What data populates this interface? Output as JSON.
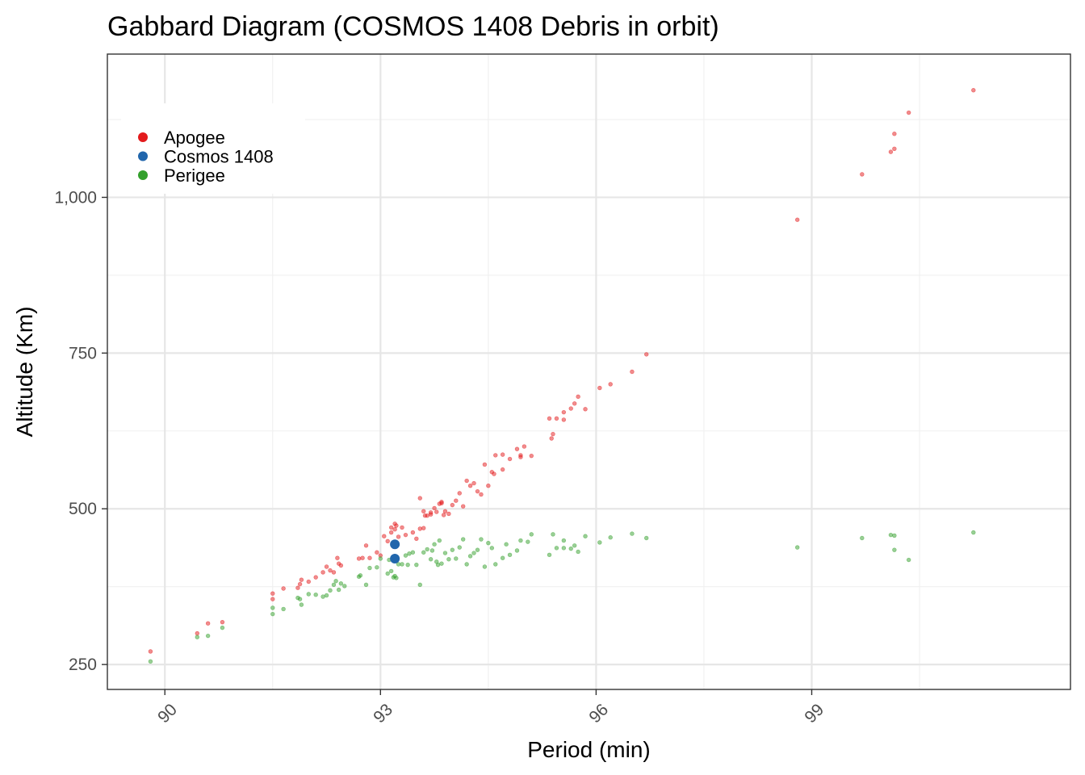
{
  "chart_data": {
    "type": "scatter",
    "title": "Gabbard Diagram (COSMOS 1408 Debris in orbit)",
    "xlabel": "Period (min)",
    "ylabel": "Altitude (Km)",
    "xlim": [
      89.2,
      102.6
    ],
    "ylim": [
      210,
      1230
    ],
    "x_ticks": [
      90,
      93,
      96,
      99
    ],
    "x_tick_labels": [
      "90",
      "93",
      "96",
      "99"
    ],
    "x_minor": [
      91.5,
      94.5,
      97.5,
      100.5
    ],
    "y_ticks": [
      250,
      500,
      750,
      1000
    ],
    "y_tick_labels": [
      "250",
      "500",
      "750",
      "1,000"
    ],
    "y_minor": [
      375,
      625,
      875,
      1125
    ],
    "grid": true,
    "legend_position": "top-left (inside)",
    "series": [
      {
        "name": "Apogee",
        "color": "#e31a1c",
        "point_style": "small translucent",
        "points": [
          [
            89.8,
            271
          ],
          [
            90.45,
            300
          ],
          [
            90.6,
            316
          ],
          [
            90.8,
            318
          ],
          [
            91.5,
            364
          ],
          [
            91.5,
            355
          ],
          [
            91.65,
            372
          ],
          [
            91.85,
            373
          ],
          [
            91.88,
            379
          ],
          [
            91.9,
            386
          ],
          [
            92.0,
            383
          ],
          [
            92.1,
            390
          ],
          [
            92.2,
            398
          ],
          [
            92.25,
            407
          ],
          [
            92.3,
            401
          ],
          [
            92.35,
            398
          ],
          [
            92.4,
            421
          ],
          [
            92.42,
            412
          ],
          [
            92.45,
            409
          ],
          [
            92.7,
            420
          ],
          [
            92.75,
            421
          ],
          [
            92.8,
            441
          ],
          [
            92.85,
            421
          ],
          [
            92.95,
            430
          ],
          [
            93.0,
            425
          ],
          [
            93.05,
            456
          ],
          [
            93.1,
            448
          ],
          [
            93.15,
            462
          ],
          [
            93.15,
            470
          ],
          [
            93.2,
            467
          ],
          [
            93.2,
            476
          ],
          [
            93.22,
            473
          ],
          [
            93.25,
            455
          ],
          [
            93.3,
            470
          ],
          [
            93.35,
            458
          ],
          [
            93.45,
            462
          ],
          [
            93.5,
            452
          ],
          [
            93.55,
            517
          ],
          [
            93.55,
            468
          ],
          [
            93.6,
            469
          ],
          [
            93.6,
            496
          ],
          [
            93.62,
            489
          ],
          [
            93.65,
            489
          ],
          [
            93.7,
            494
          ],
          [
            93.7,
            491
          ],
          [
            93.75,
            501
          ],
          [
            93.78,
            495
          ],
          [
            93.82,
            508
          ],
          [
            93.85,
            511
          ],
          [
            93.85,
            509
          ],
          [
            93.88,
            490
          ],
          [
            93.9,
            496
          ],
          [
            93.95,
            492
          ],
          [
            94.0,
            506
          ],
          [
            94.05,
            513
          ],
          [
            94.1,
            525
          ],
          [
            94.15,
            504
          ],
          [
            94.2,
            545
          ],
          [
            94.25,
            537
          ],
          [
            94.3,
            541
          ],
          [
            94.35,
            528
          ],
          [
            94.4,
            523
          ],
          [
            94.45,
            571
          ],
          [
            94.5,
            537
          ],
          [
            94.55,
            559
          ],
          [
            94.58,
            556
          ],
          [
            94.6,
            586
          ],
          [
            94.7,
            563
          ],
          [
            94.7,
            587
          ],
          [
            94.8,
            580
          ],
          [
            94.9,
            596
          ],
          [
            94.95,
            586
          ],
          [
            94.95,
            583
          ],
          [
            95.0,
            600
          ],
          [
            95.1,
            585
          ],
          [
            95.35,
            645
          ],
          [
            95.38,
            613
          ],
          [
            95.4,
            620
          ],
          [
            95.45,
            645
          ],
          [
            95.55,
            643
          ],
          [
            95.55,
            655
          ],
          [
            95.65,
            661
          ],
          [
            95.7,
            669
          ],
          [
            95.75,
            680
          ],
          [
            95.85,
            660
          ],
          [
            96.05,
            694
          ],
          [
            96.2,
            700
          ],
          [
            96.5,
            720
          ],
          [
            96.7,
            748
          ],
          [
            98.8,
            964
          ],
          [
            99.7,
            1037
          ],
          [
            100.1,
            1073
          ],
          [
            100.15,
            1078
          ],
          [
            100.15,
            1102
          ],
          [
            100.35,
            1136
          ],
          [
            101.25,
            1172
          ]
        ]
      },
      {
        "name": "Cosmos 1408",
        "color": "#2166ac",
        "point_style": "large solid",
        "points": [
          [
            93.2,
            443
          ],
          [
            93.2,
            420
          ]
        ]
      },
      {
        "name": "Perigee",
        "color": "#33a02c",
        "point_style": "small translucent",
        "points": [
          [
            89.8,
            255
          ],
          [
            90.45,
            294
          ],
          [
            90.6,
            296
          ],
          [
            90.8,
            309
          ],
          [
            91.5,
            341
          ],
          [
            91.5,
            331
          ],
          [
            91.65,
            339
          ],
          [
            91.85,
            357
          ],
          [
            91.88,
            355
          ],
          [
            91.9,
            346
          ],
          [
            92.0,
            363
          ],
          [
            92.1,
            362
          ],
          [
            92.2,
            359
          ],
          [
            92.25,
            361
          ],
          [
            92.3,
            369
          ],
          [
            92.35,
            378
          ],
          [
            92.38,
            384
          ],
          [
            92.42,
            370
          ],
          [
            92.45,
            380
          ],
          [
            92.5,
            376
          ],
          [
            92.7,
            391
          ],
          [
            92.72,
            393
          ],
          [
            92.8,
            378
          ],
          [
            92.85,
            405
          ],
          [
            92.95,
            406
          ],
          [
            93.0,
            420
          ],
          [
            93.1,
            396
          ],
          [
            93.12,
            418
          ],
          [
            93.15,
            400
          ],
          [
            93.18,
            390
          ],
          [
            93.2,
            392
          ],
          [
            93.22,
            389
          ],
          [
            93.25,
            411
          ],
          [
            93.3,
            411
          ],
          [
            93.35,
            425
          ],
          [
            93.38,
            410
          ],
          [
            93.4,
            428
          ],
          [
            93.45,
            430
          ],
          [
            93.5,
            410
          ],
          [
            93.55,
            378
          ],
          [
            93.6,
            430
          ],
          [
            93.65,
            435
          ],
          [
            93.7,
            419
          ],
          [
            93.72,
            433
          ],
          [
            93.75,
            443
          ],
          [
            93.78,
            415
          ],
          [
            93.8,
            410
          ],
          [
            93.82,
            449
          ],
          [
            93.85,
            412
          ],
          [
            93.9,
            429
          ],
          [
            93.95,
            419
          ],
          [
            94.0,
            434
          ],
          [
            94.05,
            420
          ],
          [
            94.1,
            438
          ],
          [
            94.15,
            451
          ],
          [
            94.2,
            411
          ],
          [
            94.25,
            424
          ],
          [
            94.3,
            429
          ],
          [
            94.35,
            434
          ],
          [
            94.4,
            451
          ],
          [
            94.45,
            407
          ],
          [
            94.5,
            445
          ],
          [
            94.55,
            437
          ],
          [
            94.6,
            411
          ],
          [
            94.7,
            421
          ],
          [
            94.75,
            443
          ],
          [
            94.8,
            426
          ],
          [
            94.9,
            433
          ],
          [
            94.95,
            449
          ],
          [
            95.05,
            447
          ],
          [
            95.1,
            459
          ],
          [
            95.35,
            426
          ],
          [
            95.4,
            459
          ],
          [
            95.45,
            437
          ],
          [
            95.55,
            437
          ],
          [
            95.55,
            449
          ],
          [
            95.65,
            436
          ],
          [
            95.7,
            441
          ],
          [
            95.75,
            431
          ],
          [
            95.85,
            456
          ],
          [
            96.05,
            446
          ],
          [
            96.2,
            454
          ],
          [
            96.5,
            460
          ],
          [
            96.7,
            453
          ],
          [
            98.8,
            438
          ],
          [
            99.7,
            453
          ],
          [
            100.1,
            458
          ],
          [
            100.15,
            457
          ],
          [
            100.15,
            434
          ],
          [
            100.35,
            418
          ],
          [
            101.25,
            462
          ]
        ]
      }
    ]
  }
}
